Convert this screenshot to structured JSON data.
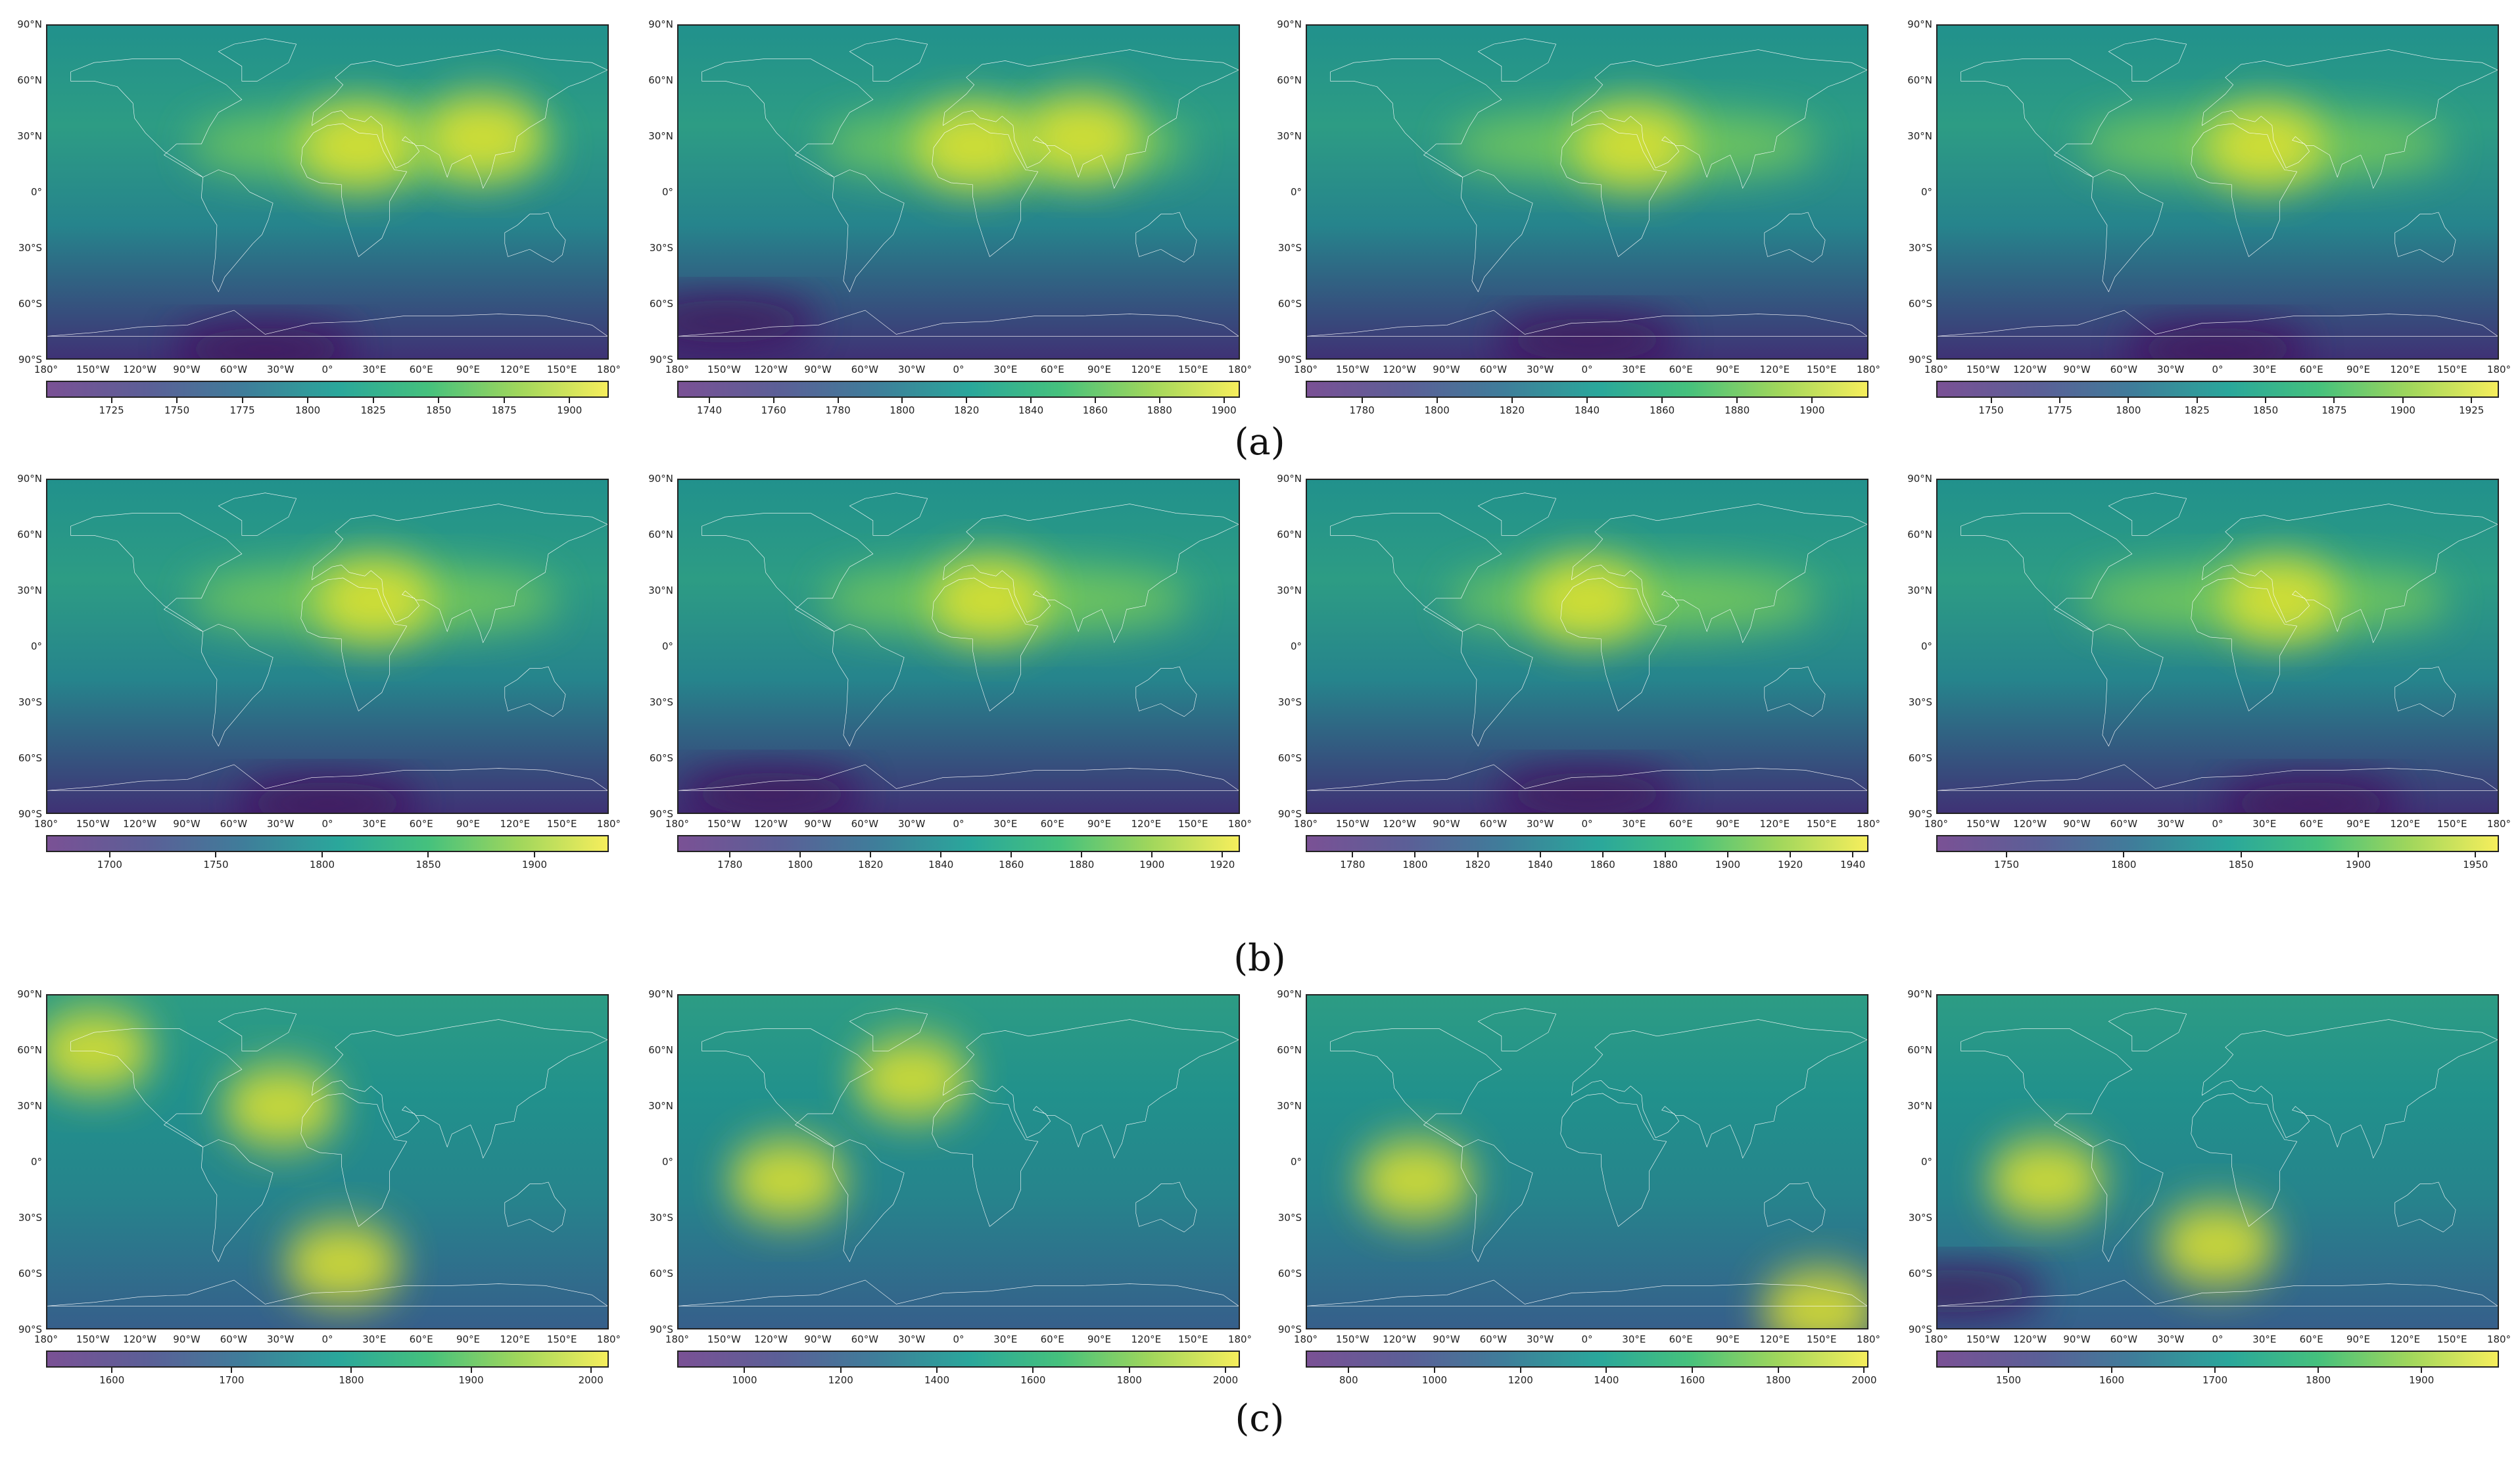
{
  "row_captions": [
    "(a)",
    "(b)",
    "(c)"
  ],
  "lat_labels": [
    "90°N",
    "60°N",
    "30°N",
    "0°",
    "30°S",
    "60°S",
    "90°S"
  ],
  "lon_labels": [
    "180°",
    "150°W",
    "120°W",
    "90°W",
    "60°W",
    "30°W",
    "0°",
    "30°E",
    "60°E",
    "90°E",
    "120°E",
    "150°E",
    "180°"
  ],
  "colors": {
    "low": "#440154",
    "mid": "#21918c",
    "high": "#fde725",
    "coastline": "#ffffff"
  },
  "chart_data": [
    {
      "type": "heatmap",
      "row": "a",
      "panel": 1,
      "colorbar_ticks": [
        1725,
        1750,
        1775,
        1800,
        1825,
        1850,
        1875,
        1900
      ],
      "colorbar_range": [
        1700,
        1915
      ],
      "xlim": [
        -180,
        180
      ],
      "ylim": [
        -90,
        90
      ],
      "hotspots": [
        {
          "lon": 20,
          "lat": 25,
          "level": "high"
        },
        {
          "lon": 100,
          "lat": 30,
          "level": "high"
        },
        {
          "lon": -40,
          "lat": -85,
          "level": "low"
        }
      ]
    },
    {
      "type": "heatmap",
      "row": "a",
      "panel": 2,
      "colorbar_ticks": [
        1740,
        1760,
        1780,
        1800,
        1820,
        1840,
        1860,
        1880,
        1900
      ],
      "colorbar_range": [
        1730,
        1905
      ],
      "xlim": [
        -180,
        180
      ],
      "ylim": [
        -90,
        90
      ],
      "hotspots": [
        {
          "lon": 10,
          "lat": 25,
          "level": "high"
        },
        {
          "lon": 80,
          "lat": 30,
          "level": "high"
        },
        {
          "lon": -150,
          "lat": -70,
          "level": "low"
        }
      ]
    },
    {
      "type": "heatmap",
      "row": "a",
      "panel": 3,
      "colorbar_ticks": [
        1780,
        1800,
        1820,
        1840,
        1860,
        1880,
        1900
      ],
      "colorbar_range": [
        1765,
        1915
      ],
      "xlim": [
        -180,
        180
      ],
      "ylim": [
        -90,
        90
      ],
      "hotspots": [
        {
          "lon": 30,
          "lat": 25,
          "level": "high"
        },
        {
          "lon": 0,
          "lat": -80,
          "level": "low"
        }
      ]
    },
    {
      "type": "heatmap",
      "row": "a",
      "panel": 4,
      "colorbar_ticks": [
        1750,
        1775,
        1800,
        1825,
        1850,
        1875,
        1900,
        1925
      ],
      "colorbar_range": [
        1730,
        1935
      ],
      "xlim": [
        -180,
        180
      ],
      "ylim": [
        -90,
        90
      ],
      "hotspots": [
        {
          "lon": 30,
          "lat": 25,
          "level": "high"
        },
        {
          "lon": 0,
          "lat": -85,
          "level": "low"
        }
      ]
    },
    {
      "type": "heatmap",
      "row": "b",
      "panel": 1,
      "colorbar_ticks": [
        1700,
        1750,
        1800,
        1850,
        1900
      ],
      "colorbar_range": [
        1670,
        1935
      ],
      "xlim": [
        -180,
        180
      ],
      "ylim": [
        -90,
        90
      ],
      "hotspots": [
        {
          "lon": 30,
          "lat": 25,
          "level": "high"
        },
        {
          "lon": 0,
          "lat": -85,
          "level": "low"
        }
      ]
    },
    {
      "type": "heatmap",
      "row": "b",
      "panel": 2,
      "colorbar_ticks": [
        1780,
        1800,
        1820,
        1840,
        1860,
        1880,
        1900,
        1920
      ],
      "colorbar_range": [
        1765,
        1925
      ],
      "xlim": [
        -180,
        180
      ],
      "ylim": [
        -90,
        90
      ],
      "hotspots": [
        {
          "lon": 20,
          "lat": 25,
          "level": "high"
        },
        {
          "lon": -120,
          "lat": -80,
          "level": "low"
        }
      ]
    },
    {
      "type": "heatmap",
      "row": "b",
      "panel": 3,
      "colorbar_ticks": [
        1780,
        1800,
        1820,
        1840,
        1860,
        1880,
        1900,
        1920,
        1940
      ],
      "colorbar_range": [
        1765,
        1945
      ],
      "xlim": [
        -180,
        180
      ],
      "ylim": [
        -90,
        90
      ],
      "hotspots": [
        {
          "lon": 0,
          "lat": 25,
          "level": "high"
        },
        {
          "lon": 0,
          "lat": -80,
          "level": "low"
        }
      ]
    },
    {
      "type": "heatmap",
      "row": "b",
      "panel": 4,
      "colorbar_ticks": [
        1750,
        1800,
        1850,
        1900,
        1950
      ],
      "colorbar_range": [
        1720,
        1960
      ],
      "xlim": [
        -180,
        180
      ],
      "ylim": [
        -90,
        90
      ],
      "hotspots": [
        {
          "lon": 40,
          "lat": 25,
          "level": "high"
        },
        {
          "lon": 60,
          "lat": -85,
          "level": "low"
        }
      ]
    },
    {
      "type": "heatmap",
      "row": "c",
      "panel": 1,
      "colorbar_ticks": [
        1600,
        1700,
        1800,
        1900,
        2000
      ],
      "colorbar_range": [
        1545,
        2015
      ],
      "xlim": [
        -180,
        180
      ],
      "ylim": [
        -90,
        90
      ],
      "hotspots": [
        {
          "lon": -30,
          "lat": 30,
          "level": "high"
        },
        {
          "lon": 10,
          "lat": -55,
          "level": "high"
        },
        {
          "lon": -150,
          "lat": 60,
          "level": "high"
        }
      ]
    },
    {
      "type": "heatmap",
      "row": "c",
      "panel": 2,
      "colorbar_ticks": [
        1000,
        1200,
        1400,
        1600,
        1800,
        2000
      ],
      "colorbar_range": [
        860,
        2030
      ],
      "xlim": [
        -180,
        180
      ],
      "ylim": [
        -90,
        90
      ],
      "hotspots": [
        {
          "lon": -30,
          "lat": 45,
          "level": "high"
        },
        {
          "lon": -110,
          "lat": -10,
          "level": "high"
        }
      ]
    },
    {
      "type": "heatmap",
      "row": "c",
      "panel": 3,
      "colorbar_ticks": [
        800,
        1000,
        1200,
        1400,
        1600,
        1800,
        2000
      ],
      "colorbar_range": [
        700,
        2010
      ],
      "xlim": [
        -180,
        180
      ],
      "ylim": [
        -90,
        90
      ],
      "hotspots": [
        {
          "lon": -110,
          "lat": -10,
          "level": "high"
        },
        {
          "lon": 150,
          "lat": -80,
          "level": "high"
        }
      ]
    },
    {
      "type": "heatmap",
      "row": "c",
      "panel": 4,
      "colorbar_ticks": [
        1500,
        1600,
        1700,
        1800,
        1900
      ],
      "colorbar_range": [
        1430,
        1975
      ],
      "xlim": [
        -180,
        180
      ],
      "ylim": [
        -90,
        90
      ],
      "hotspots": [
        {
          "lon": -110,
          "lat": -10,
          "level": "high"
        },
        {
          "lon": 0,
          "lat": -45,
          "level": "high"
        },
        {
          "lon": -170,
          "lat": -70,
          "level": "low"
        }
      ]
    }
  ]
}
